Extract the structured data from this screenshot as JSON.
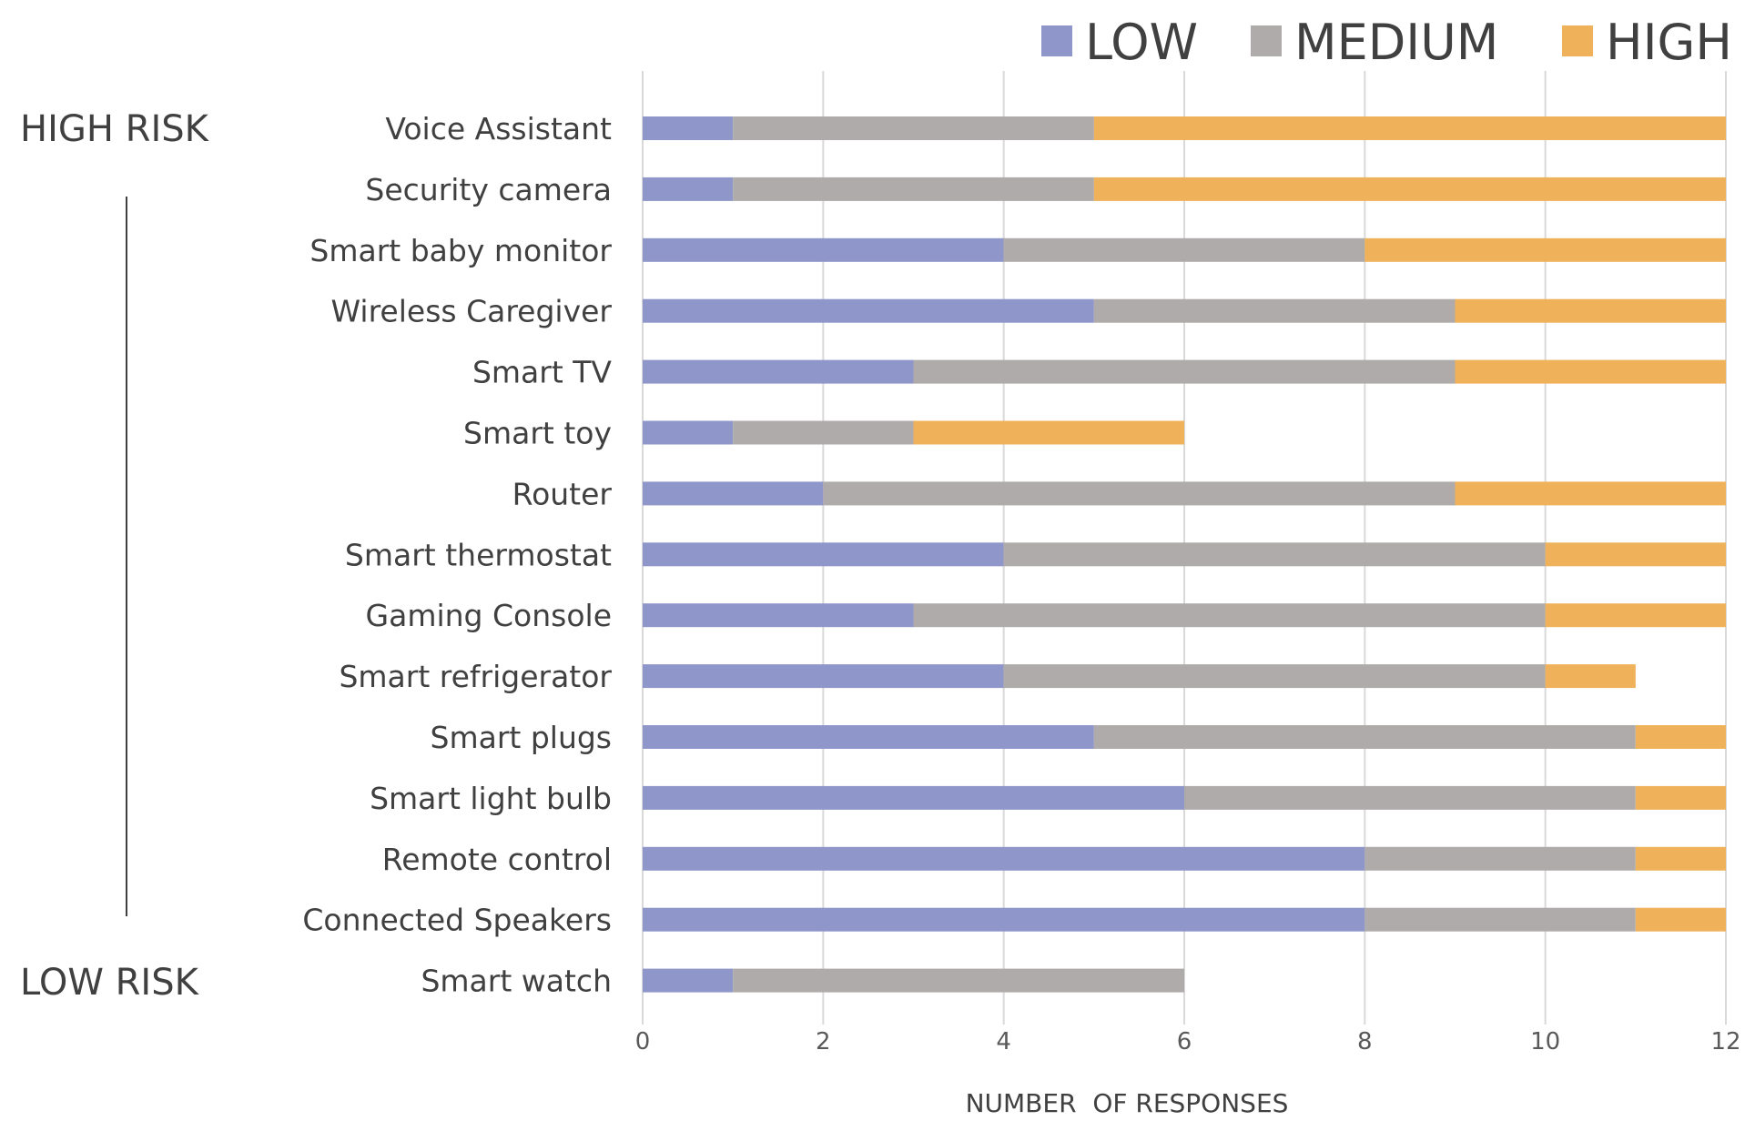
{
  "chart_data": {
    "type": "bar",
    "orientation": "horizontal",
    "stacked": true,
    "categories": [
      "Voice Assistant",
      "Security camera",
      "Smart baby monitor",
      "Wireless Caregiver",
      "Smart TV",
      "Smart toy",
      "Router",
      "Smart thermostat",
      "Gaming Console",
      "Smart refrigerator",
      "Smart plugs",
      "Smart light  bulb",
      "Remote control",
      "Connected Speakers",
      "Smart watch"
    ],
    "series": [
      {
        "name": "LOW",
        "color": "#8f96c9",
        "values": [
          1,
          1,
          4,
          5,
          3,
          1,
          2,
          4,
          3,
          4,
          5,
          6,
          8,
          8,
          1
        ]
      },
      {
        "name": "MEDIUM",
        "color": "#afabab",
        "values": [
          4,
          4,
          4,
          4,
          6,
          2,
          7,
          6,
          7,
          6,
          6,
          5,
          3,
          3,
          5
        ]
      },
      {
        "name": "HIGH",
        "color": "#efb25a",
        "values": [
          7,
          7,
          4,
          3,
          3,
          3,
          3,
          2,
          2,
          1,
          1,
          1,
          1,
          1,
          0
        ]
      }
    ],
    "xlabel": "NUMBER  OF RESPONSES",
    "xlim": [
      0,
      12
    ],
    "xticks": [
      "0",
      "2",
      "4",
      "6",
      "8",
      "10",
      "12"
    ],
    "grid": "vertical",
    "legend_position": "top-right",
    "side_labels": {
      "top": "HIGH RISK",
      "bottom": "LOW RISK"
    }
  }
}
